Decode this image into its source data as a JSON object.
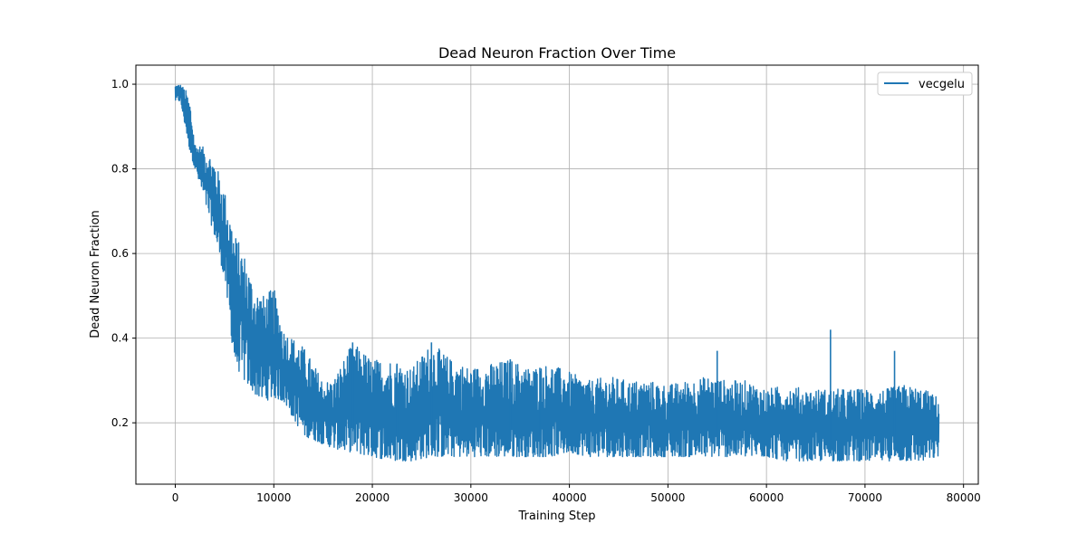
{
  "chart_data": {
    "type": "line",
    "title": "Dead Neuron Fraction Over Time",
    "xlabel": "Training Step",
    "ylabel": "Dead Neuron Fraction",
    "xlim": [
      -4000,
      81500
    ],
    "ylim": [
      0.055,
      1.045
    ],
    "xticks": [
      0,
      10000,
      20000,
      30000,
      40000,
      50000,
      60000,
      70000,
      80000
    ],
    "xtick_labels": [
      "0",
      "10000",
      "20000",
      "30000",
      "40000",
      "50000",
      "60000",
      "70000",
      "80000"
    ],
    "yticks": [
      0.2,
      0.4,
      0.6,
      0.8,
      1.0
    ],
    "ytick_labels": [
      "0.2",
      "0.4",
      "0.6",
      "0.8",
      "1.0"
    ],
    "grid": true,
    "legend_position": "top-right",
    "series": [
      {
        "name": "vecgelu",
        "color": "#1f77b4",
        "x_range": [
          0,
          77500
        ],
        "envelope_x": [
          0,
          500,
          1000,
          1500,
          2000,
          3000,
          4000,
          5000,
          6000,
          7000,
          8000,
          9000,
          10000,
          11000,
          12000,
          13000,
          14000,
          15000,
          16000,
          18000,
          20000,
          22000,
          24000,
          26000,
          28000,
          30000,
          32000,
          34000,
          36000,
          38000,
          40000,
          42000,
          44000,
          46000,
          48000,
          50000,
          52000,
          54000,
          56000,
          58000,
          60000,
          62000,
          64000,
          66000,
          68000,
          70000,
          72000,
          74000,
          76000,
          77500
        ],
        "envelope_min": [
          0.96,
          0.96,
          0.9,
          0.84,
          0.8,
          0.72,
          0.64,
          0.54,
          0.34,
          0.3,
          0.27,
          0.25,
          0.26,
          0.25,
          0.21,
          0.17,
          0.16,
          0.15,
          0.14,
          0.13,
          0.12,
          0.11,
          0.11,
          0.12,
          0.12,
          0.12,
          0.12,
          0.12,
          0.12,
          0.12,
          0.13,
          0.12,
          0.12,
          0.12,
          0.12,
          0.12,
          0.12,
          0.12,
          0.12,
          0.12,
          0.12,
          0.11,
          0.11,
          0.11,
          0.11,
          0.11,
          0.11,
          0.11,
          0.11,
          0.12
        ],
        "envelope_max": [
          1.0,
          1.0,
          0.99,
          0.96,
          0.86,
          0.85,
          0.82,
          0.75,
          0.65,
          0.6,
          0.52,
          0.5,
          0.52,
          0.42,
          0.4,
          0.38,
          0.34,
          0.3,
          0.3,
          0.39,
          0.35,
          0.35,
          0.33,
          0.39,
          0.35,
          0.33,
          0.34,
          0.35,
          0.33,
          0.34,
          0.32,
          0.3,
          0.31,
          0.3,
          0.3,
          0.29,
          0.3,
          0.31,
          0.3,
          0.3,
          0.28,
          0.29,
          0.28,
          0.28,
          0.28,
          0.28,
          0.28,
          0.29,
          0.28,
          0.26
        ],
        "spikes": [
          [
            18000,
            0.39
          ],
          [
            22500,
            0.34
          ],
          [
            26000,
            0.39
          ],
          [
            34000,
            0.35
          ],
          [
            37000,
            0.33
          ],
          [
            55000,
            0.37
          ],
          [
            66500,
            0.42
          ],
          [
            73000,
            0.37
          ]
        ]
      }
    ]
  }
}
